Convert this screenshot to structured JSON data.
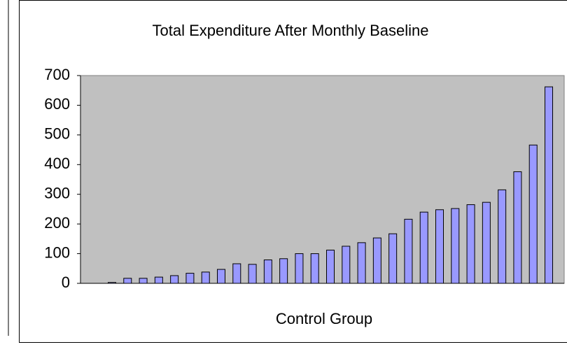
{
  "chart_data": {
    "type": "bar",
    "title": "Total Expenditure After Monthly Baseline",
    "x_label": "Control Group",
    "categories": [
      null,
      null,
      null,
      null,
      null,
      null,
      null,
      null,
      null,
      null,
      null,
      null,
      null,
      null,
      null,
      null,
      null,
      null,
      null,
      null,
      null,
      null,
      null,
      null,
      null,
      null,
      null,
      null,
      null
    ],
    "values": [
      3,
      17,
      17,
      21,
      26,
      34,
      38,
      47,
      66,
      64,
      79,
      83,
      100,
      100,
      112,
      125,
      137,
      153,
      167,
      216,
      240,
      248,
      252,
      265,
      273,
      315,
      376,
      466,
      662
    ],
    "color": "#9999ff",
    "ylim": [
      0,
      700
    ],
    "yticks": [
      0,
      100,
      200,
      300,
      400,
      500,
      600,
      700
    ],
    "grid": false
  }
}
